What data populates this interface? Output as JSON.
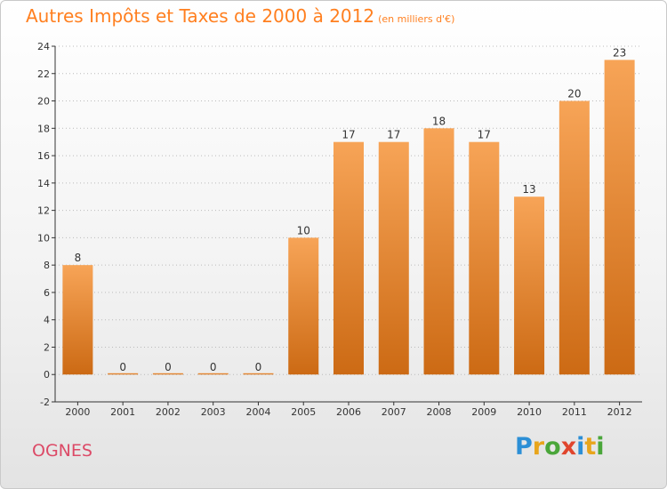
{
  "chart_data": {
    "type": "bar",
    "title": "Autres Impôts et Taxes de 2000 à 2012",
    "subtitle": "(en milliers d'€)",
    "categories": [
      "2000",
      "2001",
      "2002",
      "2003",
      "2004",
      "2005",
      "2006",
      "2007",
      "2008",
      "2009",
      "2010",
      "2011",
      "2012"
    ],
    "values": [
      8,
      0,
      0,
      0,
      0,
      10,
      17,
      17,
      18,
      17,
      13,
      20,
      23
    ],
    "xlabel": "",
    "ylabel": "",
    "ylim": [
      -2,
      24
    ],
    "yticks": [
      -2,
      0,
      2,
      4,
      6,
      8,
      10,
      12,
      14,
      16,
      18,
      20,
      22,
      24
    ],
    "grid": "horizontal dotted",
    "legend": "none",
    "bar_color_top": "#f7a457",
    "bar_color_bottom": "#cc6a14"
  },
  "footer": {
    "commune": "OGNES",
    "logo": "Proxiti"
  },
  "colors": {
    "title": "#ff7f1f",
    "commune": "#dc4a67",
    "axis": "#333333",
    "gridline": "#bbbbbb"
  },
  "logo_letters": [
    {
      "ch": "P",
      "color": "#2c8fd6"
    },
    {
      "ch": "r",
      "color": "#e8a51c"
    },
    {
      "ch": "o",
      "color": "#4aa63a"
    },
    {
      "ch": "x",
      "color": "#e0452d"
    },
    {
      "ch": "i",
      "color": "#2c8fd6"
    },
    {
      "ch": "t",
      "color": "#e8a51c"
    },
    {
      "ch": "i",
      "color": "#4aa63a"
    }
  ]
}
